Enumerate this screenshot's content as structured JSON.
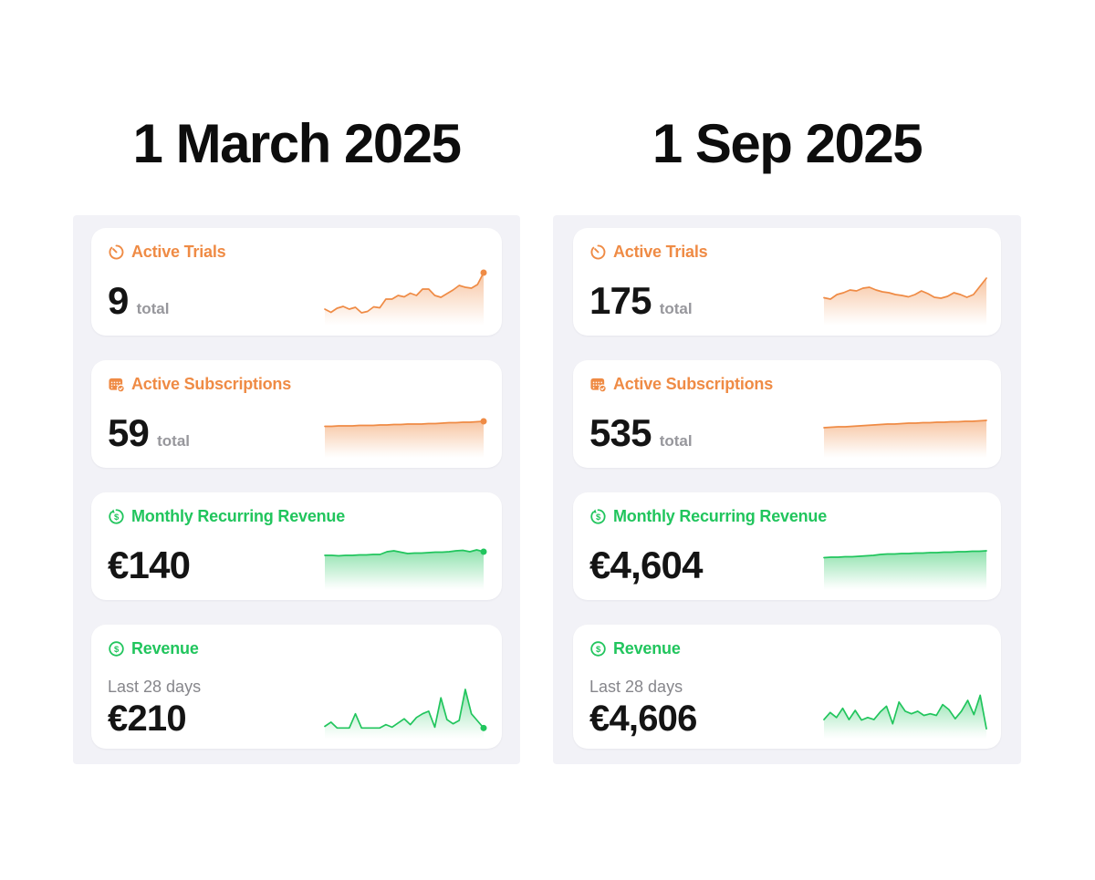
{
  "colors": {
    "orange": "#EF8B45",
    "green": "#21C55D",
    "panel_bg": "#F2F2F7",
    "card_bg": "#FFFFFF",
    "value_text": "#141414",
    "muted_text": "#97979C",
    "title_text": "#0D0D0D"
  },
  "columns": [
    {
      "title": "1 March 2025",
      "cards": [
        {
          "label": "Active Trials",
          "value": "9",
          "unit": "total",
          "icon": "timer-icon",
          "chart": {
            "type": "area",
            "color": "#EF8B45",
            "end_dot": true,
            "points": [
              20,
              13,
              22,
              26,
              20,
              24,
              12,
              15,
              25,
              23,
              42,
              42,
              50,
              47,
              55,
              50,
              64,
              64,
              50,
              46,
              54,
              62,
              72,
              68,
              66,
              74,
              100
            ]
          }
        },
        {
          "label": "Active Subscriptions",
          "value": "59",
          "unit": "total",
          "icon": "calendar-badge-icon",
          "chart": {
            "type": "area",
            "color": "#EF8B45",
            "end_dot": true,
            "points": [
              53,
              53,
              54,
              54,
              54,
              55,
              55,
              55,
              56,
              56,
              57,
              57,
              58,
              58,
              58,
              59,
              59,
              60,
              61,
              61,
              62,
              62,
              63,
              64
            ]
          }
        },
        {
          "label": "Monthly Recurring Revenue",
          "value": "€140",
          "icon": "recurring-revenue-icon",
          "chart": {
            "type": "area",
            "color": "#21C55D",
            "end_dot": true,
            "points": [
              60,
              60,
              59,
              60,
              60,
              61,
              61,
              62,
              62,
              68,
              70,
              67,
              64,
              65,
              65,
              66,
              67,
              67,
              68,
              70,
              71,
              68,
              72,
              68
            ]
          }
        },
        {
          "label": "Revenue",
          "subtitle": "Last 28 days",
          "value": "€210",
          "icon": "dollar-circle-icon",
          "chart": {
            "type": "area",
            "color": "#21C55D",
            "end_dot": true,
            "points": [
              12,
              22,
              8,
              8,
              8,
              42,
              8,
              8,
              8,
              8,
              16,
              10,
              20,
              30,
              16,
              33,
              42,
              48,
              10,
              80,
              28,
              18,
              26,
              100,
              42,
              25,
              8
            ]
          }
        }
      ]
    },
    {
      "title": "1 Sep 2025",
      "cards": [
        {
          "label": "Active Trials",
          "value": "175",
          "unit": "total",
          "icon": "timer-icon",
          "chart": {
            "type": "area",
            "color": "#EF8B45",
            "end_dot": false,
            "points": [
              45,
              42,
              52,
              56,
              62,
              60,
              66,
              68,
              62,
              58,
              56,
              52,
              50,
              47,
              52,
              60,
              54,
              46,
              44,
              48,
              56,
              52,
              46,
              52,
              70,
              88
            ]
          }
        },
        {
          "label": "Active Subscriptions",
          "value": "535",
          "unit": "total",
          "icon": "calendar-badge-icon",
          "chart": {
            "type": "area",
            "color": "#EF8B45",
            "end_dot": false,
            "points": [
              50,
              51,
              52,
              52,
              53,
              54,
              55,
              56,
              57,
              58,
              58,
              59,
              60,
              60,
              61,
              61,
              62,
              62,
              63,
              63,
              64,
              64,
              65,
              66
            ]
          }
        },
        {
          "label": "Monthly Recurring Revenue",
          "value": "€4,604",
          "icon": "recurring-revenue-icon",
          "chart": {
            "type": "area",
            "color": "#21C55D",
            "end_dot": false,
            "points": [
              55,
              56,
              56,
              57,
              57,
              58,
              59,
              60,
              62,
              63,
              63,
              64,
              64,
              65,
              65,
              66,
              66,
              67,
              67,
              68,
              68,
              69,
              69,
              70
            ]
          }
        },
        {
          "label": "Revenue",
          "subtitle": "Last 28 days",
          "value": "€4,606",
          "icon": "dollar-circle-icon",
          "chart": {
            "type": "area",
            "color": "#21C55D",
            "end_dot": false,
            "points": [
              28,
              45,
              33,
              55,
              28,
              50,
              27,
              33,
              28,
              46,
              60,
              18,
              70,
              48,
              42,
              48,
              38,
              42,
              38,
              64,
              52,
              30,
              48,
              74,
              40,
              86,
              6
            ]
          }
        }
      ]
    }
  ]
}
